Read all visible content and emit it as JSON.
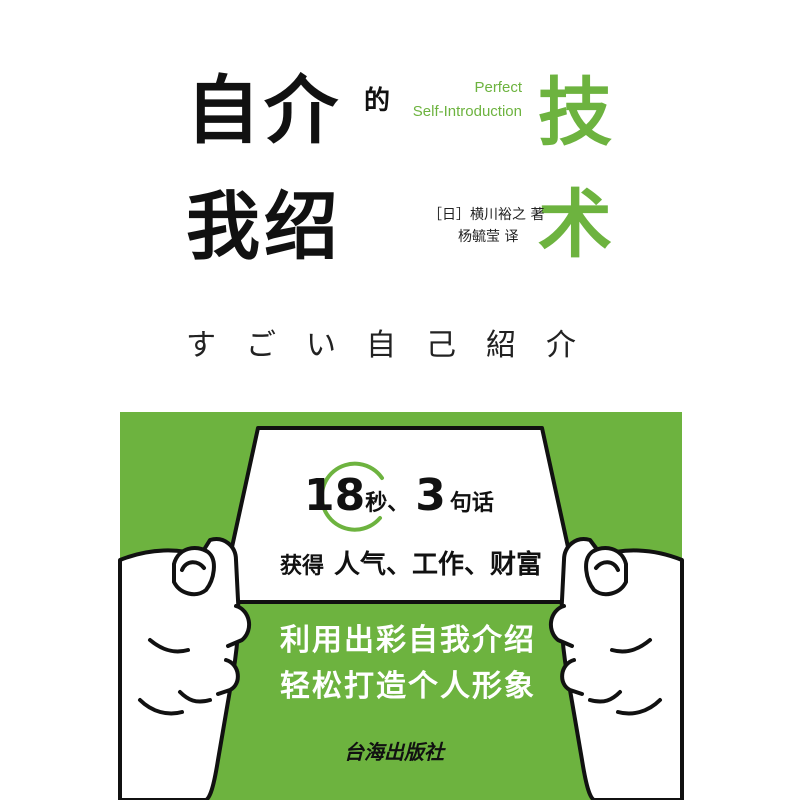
{
  "cover": {
    "title_line1": "自介",
    "title_de": "的",
    "title_line2": "我绍",
    "title_green1": "技",
    "title_green2": "术",
    "english_line1": "Perfect",
    "english_line2": "Self-Introduction",
    "author_line": "［日］横川裕之 著",
    "translator_line": "杨毓莹 译",
    "japanese_title": "すごい自己紹介"
  },
  "card": {
    "num1": "18",
    "unit1": "秒、",
    "num2": "3",
    "unit2": "句话",
    "line2_prefix": "获得",
    "line2_main": "人气、工作、财富"
  },
  "slogan": {
    "line1": "利用出彩自我介绍",
    "line2": "轻松打造个人形象"
  },
  "publisher": "台海出版社",
  "colors": {
    "accent": "#6db33f",
    "text": "#111111"
  }
}
